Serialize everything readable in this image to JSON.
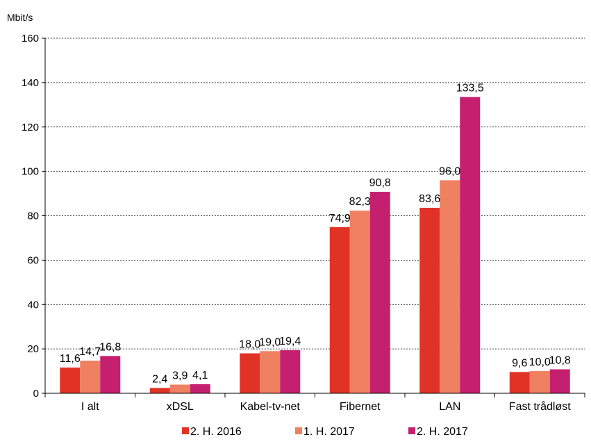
{
  "chart_data": {
    "type": "bar",
    "ylabel": "Mbit/s",
    "ylim": [
      0,
      160
    ],
    "yticks": [
      0,
      20,
      40,
      60,
      80,
      100,
      120,
      140,
      160
    ],
    "grid": true,
    "legend_position": "bottom",
    "categories": [
      "I alt",
      "xDSL",
      "Kabel-tv-net",
      "Fibernet",
      "LAN",
      "Fast trådløst"
    ],
    "series": [
      {
        "name": "2. H. 2016",
        "color": "#e03325",
        "values": [
          11.6,
          2.4,
          18.0,
          74.9,
          83.6,
          9.6
        ],
        "labels": [
          "11,6",
          "2,4",
          "18,0",
          "74,9",
          "83,6",
          "9,6"
        ]
      },
      {
        "name": "1. H. 2017",
        "color": "#ef8060",
        "values": [
          14.7,
          3.9,
          19.0,
          82.3,
          96.0,
          10.0
        ],
        "labels": [
          "14,7",
          "3,9",
          "19,0",
          "82,3",
          "96,0",
          "10,0"
        ]
      },
      {
        "name": "2. H. 2017",
        "color": "#c52070",
        "values": [
          16.8,
          4.1,
          19.4,
          90.8,
          133.5,
          10.8
        ],
        "labels": [
          "16,8",
          "4,1",
          "19,4",
          "90,8",
          "133,5",
          "10,8"
        ]
      }
    ]
  }
}
